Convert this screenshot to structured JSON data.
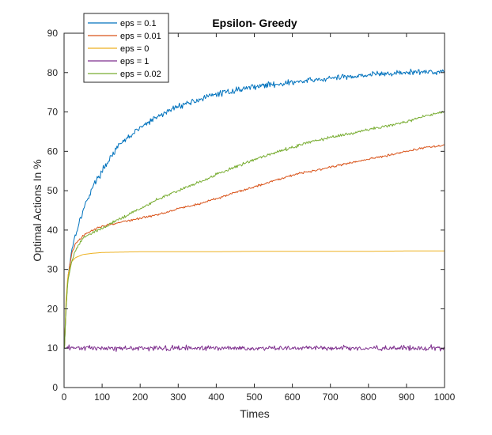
{
  "chart_data": {
    "type": "line",
    "title": "Epsilon- Greedy",
    "xlabel": "Times",
    "ylabel": "Optimal Actions In %",
    "xlim": [
      0,
      1000
    ],
    "ylim": [
      0,
      90
    ],
    "xticks": [
      0,
      100,
      200,
      300,
      400,
      500,
      600,
      700,
      800,
      900,
      1000
    ],
    "yticks": [
      0,
      10,
      20,
      30,
      40,
      50,
      60,
      70,
      80,
      90
    ],
    "grid": false,
    "legend_position": "top-left",
    "series": [
      {
        "name": "eps = 0.1",
        "color": "#0072BD",
        "noise": 0.7,
        "points": [
          [
            1,
            10
          ],
          [
            5,
            20
          ],
          [
            10,
            28
          ],
          [
            20,
            35
          ],
          [
            30,
            39
          ],
          [
            50,
            45
          ],
          [
            75,
            51
          ],
          [
            100,
            55
          ],
          [
            125,
            59
          ],
          [
            150,
            62
          ],
          [
            175,
            64
          ],
          [
            200,
            66
          ],
          [
            250,
            69
          ],
          [
            300,
            71.5
          ],
          [
            350,
            73
          ],
          [
            400,
            74.5
          ],
          [
            450,
            75.5
          ],
          [
            500,
            76.5
          ],
          [
            550,
            77
          ],
          [
            600,
            77.5
          ],
          [
            650,
            78
          ],
          [
            700,
            78.5
          ],
          [
            750,
            79
          ],
          [
            800,
            79.5
          ],
          [
            850,
            79.7
          ],
          [
            900,
            80
          ],
          [
            950,
            80.2
          ],
          [
            1000,
            80.3
          ]
        ]
      },
      {
        "name": "eps = 0.01",
        "color": "#D95319",
        "noise": 0.25,
        "points": [
          [
            1,
            10
          ],
          [
            5,
            20
          ],
          [
            10,
            28
          ],
          [
            20,
            34
          ],
          [
            30,
            36.5
          ],
          [
            50,
            38.5
          ],
          [
            75,
            40
          ],
          [
            100,
            41
          ],
          [
            150,
            42
          ],
          [
            200,
            43
          ],
          [
            250,
            44
          ],
          [
            300,
            45.5
          ],
          [
            350,
            46.5
          ],
          [
            400,
            48
          ],
          [
            450,
            49.5
          ],
          [
            500,
            51
          ],
          [
            550,
            52.5
          ],
          [
            600,
            54
          ],
          [
            650,
            55
          ],
          [
            700,
            56
          ],
          [
            750,
            57
          ],
          [
            800,
            58
          ],
          [
            850,
            59
          ],
          [
            900,
            60
          ],
          [
            950,
            61
          ],
          [
            1000,
            61.5
          ]
        ]
      },
      {
        "name": "eps = 0",
        "color": "#EDB120",
        "noise": 0.0,
        "points": [
          [
            1,
            10
          ],
          [
            5,
            22
          ],
          [
            10,
            28.5
          ],
          [
            20,
            32
          ],
          [
            30,
            33
          ],
          [
            50,
            33.8
          ],
          [
            75,
            34.1
          ],
          [
            100,
            34.3
          ],
          [
            150,
            34.4
          ],
          [
            200,
            34.5
          ],
          [
            300,
            34.5
          ],
          [
            400,
            34.5
          ],
          [
            500,
            34.6
          ],
          [
            600,
            34.6
          ],
          [
            700,
            34.6
          ],
          [
            800,
            34.6
          ],
          [
            900,
            34.7
          ],
          [
            1000,
            34.7
          ]
        ]
      },
      {
        "name": "eps = 1",
        "color": "#7E2F8E",
        "noise": 0.6,
        "points": [
          [
            1,
            10
          ],
          [
            100,
            10
          ],
          [
            200,
            10
          ],
          [
            300,
            10
          ],
          [
            400,
            10
          ],
          [
            500,
            10
          ],
          [
            600,
            10
          ],
          [
            700,
            10
          ],
          [
            800,
            10
          ],
          [
            900,
            10
          ],
          [
            1000,
            10
          ]
        ]
      },
      {
        "name": "eps = 0.02",
        "color": "#77AC30",
        "noise": 0.35,
        "points": [
          [
            1,
            10
          ],
          [
            5,
            20
          ],
          [
            10,
            27
          ],
          [
            20,
            32
          ],
          [
            30,
            35
          ],
          [
            50,
            38
          ],
          [
            75,
            39.5
          ],
          [
            100,
            40.5
          ],
          [
            150,
            43
          ],
          [
            200,
            45.5
          ],
          [
            250,
            48
          ],
          [
            300,
            50
          ],
          [
            350,
            52
          ],
          [
            400,
            54
          ],
          [
            450,
            56
          ],
          [
            500,
            58
          ],
          [
            550,
            59.5
          ],
          [
            600,
            61
          ],
          [
            650,
            62.5
          ],
          [
            700,
            63.5
          ],
          [
            750,
            64.5
          ],
          [
            800,
            65.5
          ],
          [
            850,
            66.5
          ],
          [
            900,
            67.5
          ],
          [
            950,
            69
          ],
          [
            1000,
            70
          ]
        ]
      }
    ]
  }
}
